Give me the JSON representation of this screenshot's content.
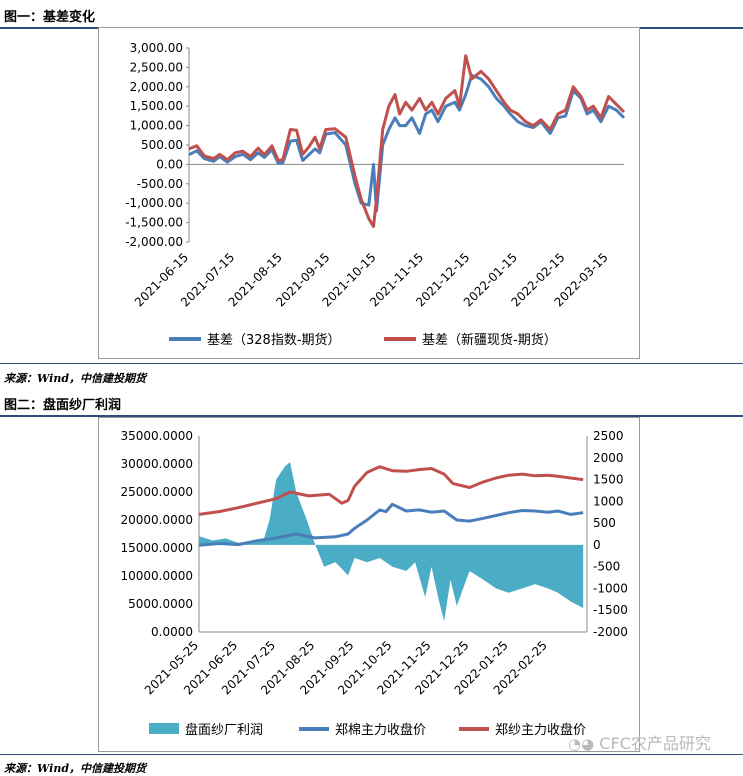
{
  "figure1": {
    "caption": "图一：基差变化",
    "source": "来源：Wind，中信建投期货",
    "chart_data": {
      "type": "line",
      "y_ticks": [
        "3,000.00",
        "2,500.00",
        "2,000.00",
        "1,500.00",
        "1,000.00",
        "500.00",
        "0.00",
        "-500.00",
        "-1,000.00",
        "-1,500.00",
        "-2,000.00"
      ],
      "ylim": [
        -2000,
        3000
      ],
      "x_ticks": [
        "2021-06-15",
        "2021-07-15",
        "2021-08-15",
        "2021-09-15",
        "2021-10-15",
        "2021-11-15",
        "2021-12-15",
        "2022-01-15",
        "2022-02-15",
        "2022-03-15"
      ],
      "x_range": [
        "2021-06-15",
        "2022-03-25"
      ],
      "series": [
        {
          "name": "基差（328指数-期货）",
          "color": "#4a7ebb",
          "points": [
            [
              "2021-06-15",
              250
            ],
            [
              "2021-06-20",
              350
            ],
            [
              "2021-06-25",
              150
            ],
            [
              "2021-07-01",
              80
            ],
            [
              "2021-07-05",
              200
            ],
            [
              "2021-07-10",
              60
            ],
            [
              "2021-07-15",
              200
            ],
            [
              "2021-07-20",
              260
            ],
            [
              "2021-07-25",
              120
            ],
            [
              "2021-07-30",
              300
            ],
            [
              "2021-08-03",
              180
            ],
            [
              "2021-08-08",
              380
            ],
            [
              "2021-08-12",
              30
            ],
            [
              "2021-08-15",
              40
            ],
            [
              "2021-08-20",
              600
            ],
            [
              "2021-08-24",
              620
            ],
            [
              "2021-08-28",
              100
            ],
            [
              "2021-09-01",
              250
            ],
            [
              "2021-09-05",
              400
            ],
            [
              "2021-09-08",
              300
            ],
            [
              "2021-09-12",
              780
            ],
            [
              "2021-09-18",
              820
            ],
            [
              "2021-09-25",
              500
            ],
            [
              "2021-10-01",
              -500
            ],
            [
              "2021-10-05",
              -1000
            ],
            [
              "2021-10-10",
              -1050
            ],
            [
              "2021-10-13",
              0
            ],
            [
              "2021-10-15",
              -1200
            ],
            [
              "2021-10-19",
              500
            ],
            [
              "2021-10-23",
              900
            ],
            [
              "2021-10-27",
              1200
            ],
            [
              "2021-10-30",
              1000
            ],
            [
              "2021-11-03",
              1000
            ],
            [
              "2021-11-07",
              1200
            ],
            [
              "2021-11-12",
              800
            ],
            [
              "2021-11-16",
              1300
            ],
            [
              "2021-11-20",
              1400
            ],
            [
              "2021-11-24",
              1100
            ],
            [
              "2021-11-29",
              1500
            ],
            [
              "2021-12-05",
              1600
            ],
            [
              "2021-12-08",
              1400
            ],
            [
              "2021-12-12",
              1800
            ],
            [
              "2021-12-16",
              2300
            ],
            [
              "2021-12-22",
              2200
            ],
            [
              "2021-12-27",
              2000
            ],
            [
              "2022-01-01",
              1700
            ],
            [
              "2022-01-06",
              1500
            ],
            [
              "2022-01-10",
              1300
            ],
            [
              "2022-01-15",
              1100
            ],
            [
              "2022-01-20",
              1000
            ],
            [
              "2022-01-25",
              950
            ],
            [
              "2022-01-30",
              1100
            ],
            [
              "2022-02-05",
              800
            ],
            [
              "2022-02-10",
              1200
            ],
            [
              "2022-02-15",
              1250
            ],
            [
              "2022-02-20",
              1900
            ],
            [
              "2022-02-25",
              1700
            ],
            [
              "2022-03-01",
              1300
            ],
            [
              "2022-03-05",
              1400
            ],
            [
              "2022-03-10",
              1100
            ],
            [
              "2022-03-15",
              1500
            ],
            [
              "2022-03-20",
              1400
            ],
            [
              "2022-03-25",
              1200
            ]
          ]
        },
        {
          "name": "基差（新疆现货-期货）",
          "color": "#c0504d",
          "points": [
            [
              "2021-06-15",
              400
            ],
            [
              "2021-06-20",
              480
            ],
            [
              "2021-06-25",
              220
            ],
            [
              "2021-07-01",
              150
            ],
            [
              "2021-07-05",
              260
            ],
            [
              "2021-07-10",
              120
            ],
            [
              "2021-07-15",
              300
            ],
            [
              "2021-07-20",
              340
            ],
            [
              "2021-07-25",
              200
            ],
            [
              "2021-07-30",
              420
            ],
            [
              "2021-08-03",
              250
            ],
            [
              "2021-08-08",
              480
            ],
            [
              "2021-08-12",
              100
            ],
            [
              "2021-08-15",
              120
            ],
            [
              "2021-08-20",
              900
            ],
            [
              "2021-08-24",
              880
            ],
            [
              "2021-08-28",
              260
            ],
            [
              "2021-09-01",
              450
            ],
            [
              "2021-09-05",
              700
            ],
            [
              "2021-09-08",
              400
            ],
            [
              "2021-09-12",
              900
            ],
            [
              "2021-09-18",
              920
            ],
            [
              "2021-09-25",
              700
            ],
            [
              "2021-10-01",
              -300
            ],
            [
              "2021-10-05",
              -900
            ],
            [
              "2021-10-10",
              -1400
            ],
            [
              "2021-10-13",
              -1600
            ],
            [
              "2021-10-15",
              -900
            ],
            [
              "2021-10-19",
              900
            ],
            [
              "2021-10-23",
              1500
            ],
            [
              "2021-10-27",
              1800
            ],
            [
              "2021-10-30",
              1300
            ],
            [
              "2021-11-03",
              1600
            ],
            [
              "2021-11-07",
              1400
            ],
            [
              "2021-11-12",
              1700
            ],
            [
              "2021-11-16",
              1400
            ],
            [
              "2021-11-20",
              1600
            ],
            [
              "2021-11-24",
              1300
            ],
            [
              "2021-11-29",
              1700
            ],
            [
              "2021-12-05",
              1900
            ],
            [
              "2021-12-08",
              1500
            ],
            [
              "2021-12-12",
              2800
            ],
            [
              "2021-12-16",
              2200
            ],
            [
              "2021-12-22",
              2400
            ],
            [
              "2021-12-27",
              2200
            ],
            [
              "2022-01-01",
              1900
            ],
            [
              "2022-01-06",
              1600
            ],
            [
              "2022-01-10",
              1400
            ],
            [
              "2022-01-15",
              1300
            ],
            [
              "2022-01-20",
              1100
            ],
            [
              "2022-01-25",
              1000
            ],
            [
              "2022-01-30",
              1150
            ],
            [
              "2022-02-05",
              900
            ],
            [
              "2022-02-10",
              1300
            ],
            [
              "2022-02-15",
              1400
            ],
            [
              "2022-02-20",
              2000
            ],
            [
              "2022-02-25",
              1750
            ],
            [
              "2022-03-01",
              1400
            ],
            [
              "2022-03-05",
              1500
            ],
            [
              "2022-03-10",
              1200
            ],
            [
              "2022-03-15",
              1750
            ],
            [
              "2022-03-20",
              1550
            ],
            [
              "2022-03-25",
              1350
            ]
          ]
        }
      ]
    }
  },
  "figure2": {
    "caption": "图二：盘面纱厂利润",
    "source": "来源：Wind，中信建投期货",
    "chart_data": {
      "type": "line",
      "y_ticks_left": [
        "35000.0000",
        "30000.0000",
        "25000.0000",
        "20000.0000",
        "15000.0000",
        "10000.0000",
        "5000.0000",
        "0.0000"
      ],
      "ylim_left": [
        0,
        35000
      ],
      "y_ticks_right": [
        "2500",
        "2000",
        "1500",
        "1000",
        "500",
        "0",
        "-500",
        "-1000",
        "-1500",
        "-2000"
      ],
      "ylim_right": [
        -2000,
        2500
      ],
      "x_ticks": [
        "2021-05-25",
        "2021-06-25",
        "2021-07-25",
        "2021-08-25",
        "2021-09-25",
        "2021-10-25",
        "2021-11-25",
        "2021-12-25",
        "2022-01-25",
        "2022-02-25"
      ],
      "x_range": [
        "2021-05-25",
        "2022-03-28"
      ],
      "series": [
        {
          "name": "盘面纱厂利润",
          "type": "area",
          "axis": "right",
          "color": "#4bacc6",
          "points": [
            [
              "2021-05-25",
              200
            ],
            [
              "2021-06-05",
              100
            ],
            [
              "2021-06-15",
              150
            ],
            [
              "2021-06-25",
              50
            ],
            [
              "2021-07-05",
              80
            ],
            [
              "2021-07-15",
              100
            ],
            [
              "2021-07-20",
              600
            ],
            [
              "2021-07-25",
              1500
            ],
            [
              "2021-08-01",
              1800
            ],
            [
              "2021-08-05",
              1900
            ],
            [
              "2021-08-10",
              1200
            ],
            [
              "2021-08-18",
              600
            ],
            [
              "2021-08-25",
              0
            ],
            [
              "2021-09-01",
              -500
            ],
            [
              "2021-09-10",
              -400
            ],
            [
              "2021-09-20",
              -700
            ],
            [
              "2021-09-25",
              -300
            ],
            [
              "2021-10-05",
              -400
            ],
            [
              "2021-10-15",
              -300
            ],
            [
              "2021-10-25",
              -500
            ],
            [
              "2021-11-05",
              -600
            ],
            [
              "2021-11-12",
              -400
            ],
            [
              "2021-11-20",
              -1200
            ],
            [
              "2021-11-25",
              -500
            ],
            [
              "2021-12-01",
              -1300
            ],
            [
              "2021-12-05",
              -1750
            ],
            [
              "2021-12-10",
              -800
            ],
            [
              "2021-12-15",
              -1400
            ],
            [
              "2021-12-25",
              -600
            ],
            [
              "2022-01-05",
              -800
            ],
            [
              "2022-01-15",
              -1000
            ],
            [
              "2022-01-25",
              -1100
            ],
            [
              "2022-02-05",
              -1000
            ],
            [
              "2022-02-15",
              -900
            ],
            [
              "2022-02-25",
              -1000
            ],
            [
              "2022-03-05",
              -1100
            ],
            [
              "2022-03-15",
              -1300
            ],
            [
              "2022-03-25",
              -1450
            ]
          ]
        },
        {
          "name": "郑棉主力收盘价",
          "type": "line",
          "axis": "left",
          "color": "#4a7ebb",
          "points": [
            [
              "2021-05-25",
              15500
            ],
            [
              "2021-06-10",
              15800
            ],
            [
              "2021-06-25",
              15600
            ],
            [
              "2021-07-10",
              16300
            ],
            [
              "2021-07-25",
              16800
            ],
            [
              "2021-08-10",
              17500
            ],
            [
              "2021-08-25",
              16800
            ],
            [
              "2021-09-10",
              17000
            ],
            [
              "2021-09-20",
              17500
            ],
            [
              "2021-09-25",
              18500
            ],
            [
              "2021-10-05",
              20000
            ],
            [
              "2021-10-15",
              21800
            ],
            [
              "2021-10-20",
              21500
            ],
            [
              "2021-10-25",
              22800
            ],
            [
              "2021-11-05",
              21600
            ],
            [
              "2021-11-15",
              21800
            ],
            [
              "2021-11-25",
              21400
            ],
            [
              "2021-12-05",
              21600
            ],
            [
              "2021-12-15",
              20000
            ],
            [
              "2021-12-25",
              19800
            ],
            [
              "2022-01-05",
              20300
            ],
            [
              "2022-01-15",
              20800
            ],
            [
              "2022-01-25",
              21300
            ],
            [
              "2022-02-05",
              21700
            ],
            [
              "2022-02-15",
              21600
            ],
            [
              "2022-02-25",
              21400
            ],
            [
              "2022-03-05",
              21600
            ],
            [
              "2022-03-15",
              21000
            ],
            [
              "2022-03-25",
              21300
            ]
          ]
        },
        {
          "name": "郑纱主力收盘价",
          "type": "line",
          "axis": "left",
          "color": "#c0504d",
          "points": [
            [
              "2021-05-25",
              21000
            ],
            [
              "2021-06-10",
              21500
            ],
            [
              "2021-06-25",
              22200
            ],
            [
              "2021-07-10",
              23000
            ],
            [
              "2021-07-25",
              23800
            ],
            [
              "2021-08-05",
              25000
            ],
            [
              "2021-08-20",
              24300
            ],
            [
              "2021-09-05",
              24600
            ],
            [
              "2021-09-15",
              23000
            ],
            [
              "2021-09-20",
              23500
            ],
            [
              "2021-09-25",
              26000
            ],
            [
              "2021-10-05",
              28500
            ],
            [
              "2021-10-15",
              29500
            ],
            [
              "2021-10-25",
              28800
            ],
            [
              "2021-11-05",
              28700
            ],
            [
              "2021-11-15",
              29000
            ],
            [
              "2021-11-25",
              29200
            ],
            [
              "2021-12-05",
              28200
            ],
            [
              "2021-12-12",
              26500
            ],
            [
              "2021-12-25",
              25800
            ],
            [
              "2022-01-05",
              26800
            ],
            [
              "2022-01-15",
              27500
            ],
            [
              "2022-01-25",
              28000
            ],
            [
              "2022-02-05",
              28200
            ],
            [
              "2022-02-15",
              27900
            ],
            [
              "2022-02-25",
              28000
            ],
            [
              "2022-03-05",
              27800
            ],
            [
              "2022-03-15",
              27500
            ],
            [
              "2022-03-25",
              27200
            ]
          ]
        }
      ]
    }
  },
  "watermark": "CFC农产品研究",
  "watermark_icon": "wechat-icon"
}
